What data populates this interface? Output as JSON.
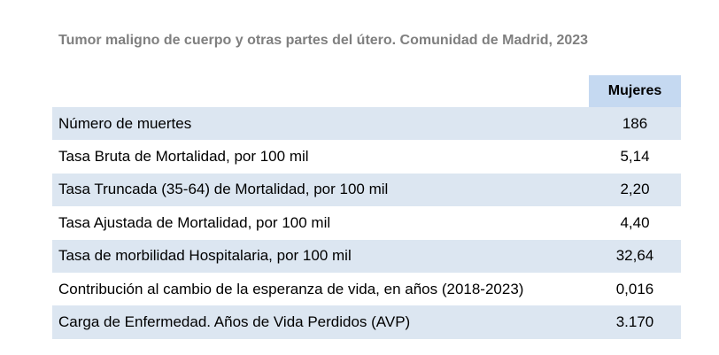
{
  "title": "Tumor maligno de cuerpo y otras partes del útero. Comunidad de Madrid, 2023",
  "table": {
    "column_header": "Mujeres",
    "rows": [
      {
        "label": "Número de muertes",
        "value": "186"
      },
      {
        "label": "Tasa Bruta de Mortalidad, por 100 mil",
        "value": "5,14"
      },
      {
        "label": "Tasa Truncada (35-64) de Mortalidad, por 100 mil",
        "value": "2,20"
      },
      {
        "label": "Tasa Ajustada de Mortalidad, por 100 mil",
        "value": "4,40"
      },
      {
        "label": "Tasa de morbilidad Hospitalaria, por 100 mil",
        "value": "32,64"
      },
      {
        "label": "Contribución al cambio de la esperanza de vida, en años (2018-2023)",
        "value": "0,016"
      },
      {
        "label": "Carga de Enfermedad. Años de Vida Perdidos (AVP)",
        "value": "3.170"
      }
    ]
  },
  "colors": {
    "header_fill": "#c5d9f1",
    "row_band_fill": "#dce6f1",
    "title_text": "#7f7f7f"
  }
}
